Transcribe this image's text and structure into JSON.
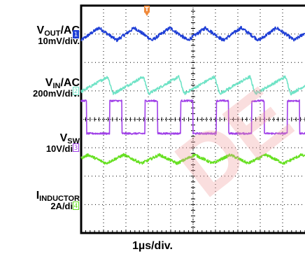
{
  "chart_data": {
    "type": "line",
    "title": "",
    "xlabel": "1µs/div.",
    "x_divisions": 10,
    "y_divisions": 8,
    "trigger_marker": "T",
    "channels": [
      {
        "id": "1",
        "name": "VOUT/AC",
        "name_main": "V",
        "name_sub": "OUT",
        "name_suffix": "/AC",
        "scale": "10mV/div.",
        "color": "#1f3fd6",
        "waveform": "triangle",
        "cycles": 6.3,
        "center_div": 7,
        "amplitude_div": 0.22,
        "noise": 0.06
      },
      {
        "id": "2",
        "name": "VIN/AC",
        "name_main": "V",
        "name_sub": "IN",
        "name_suffix": "/AC",
        "scale": "200mV/div.",
        "color": "#6fe3c6",
        "waveform": "sawtooth",
        "cycles": 6.3,
        "center_div": 5.2,
        "amplitude_div": 0.3,
        "noise": 0.05
      },
      {
        "id": "3",
        "name": "VSW",
        "name_main": "V",
        "name_sub": "SW",
        "name_suffix": "",
        "scale": "10V/div.",
        "color": "#a040e8",
        "waveform": "square",
        "cycles": 6.3,
        "low_div": 3.5,
        "high_div": 4.65,
        "duty": 0.35,
        "noise": 0.03
      },
      {
        "id": "4",
        "name": "IINDUCTOR",
        "name_main": "I",
        "name_sub": "INDUCTOR",
        "name_suffix": "",
        "scale": "2A/div.",
        "color": "#66e021",
        "waveform": "triangle",
        "cycles": 6.3,
        "center_div": 2.6,
        "amplitude_div": 0.15,
        "noise": 0.05
      }
    ]
  }
}
